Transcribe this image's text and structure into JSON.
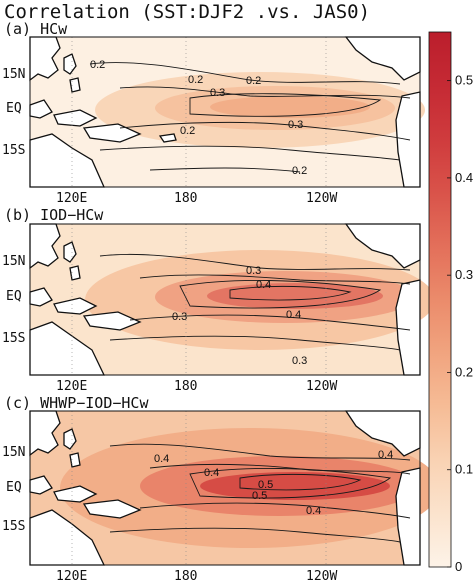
{
  "title": "Correlation (SST:DJF2 .vs. JAS0)",
  "colors": {
    "land": "#ffffff",
    "ocean_low": "#fdf2e6",
    "colorbar": [
      "#fdf3e8",
      "#fbe3cd",
      "#f9d2b3",
      "#f6bc96",
      "#f1a47f",
      "#eb8b6b",
      "#e36f5a",
      "#d9534a",
      "#cf3b3d",
      "#c52a34",
      "#bb1e2c"
    ],
    "contour": "#1a1a1a"
  },
  "colorbar": {
    "ticks": [
      "0.5",
      "0.4",
      "0.3",
      "0.2",
      "0.1",
      "0"
    ],
    "values": [
      0.5,
      0.4,
      0.3,
      0.2,
      0.1,
      0
    ],
    "range": [
      0,
      0.55
    ]
  },
  "axes": {
    "lat_labels": [
      "15N",
      "EQ",
      "15S"
    ],
    "lon_labels": [
      "120E",
      "180",
      "120W"
    ]
  },
  "chart_data": [
    {
      "type": "heatmap",
      "panel_label": "(a) HCw",
      "x": [
        120,
        180,
        240
      ],
      "y": [
        15,
        0,
        -15
      ],
      "xticklabels": [
        "120E",
        "180",
        "120W"
      ],
      "yticklabels": [
        "15N",
        "EQ",
        "15S"
      ],
      "contour_labels": [
        "0.2",
        "0.2",
        "0.2",
        "0.3",
        "0.3",
        "0.2",
        "0.2"
      ],
      "max_value": 0.3
    },
    {
      "type": "heatmap",
      "panel_label": "(b) IOD−HCw",
      "x": [
        120,
        180,
        240
      ],
      "y": [
        15,
        0,
        -15
      ],
      "xticklabels": [
        "120E",
        "180",
        "120W"
      ],
      "yticklabels": [
        "15N",
        "EQ",
        "15S"
      ],
      "contour_labels": [
        "0.3",
        "0.4",
        "0.3",
        "0.4",
        "0.3"
      ],
      "max_value": 0.45
    },
    {
      "type": "heatmap",
      "panel_label": "(c) WHWP−IOD−HCw",
      "x": [
        120,
        180,
        240
      ],
      "y": [
        15,
        0,
        -15
      ],
      "xticklabels": [
        "120E",
        "180",
        "120W"
      ],
      "yticklabels": [
        "15N",
        "EQ",
        "15S"
      ],
      "contour_labels": [
        "0.4",
        "0.4",
        "0.4",
        "0.5",
        "0.5",
        "0.4"
      ],
      "max_value": 0.55
    }
  ]
}
